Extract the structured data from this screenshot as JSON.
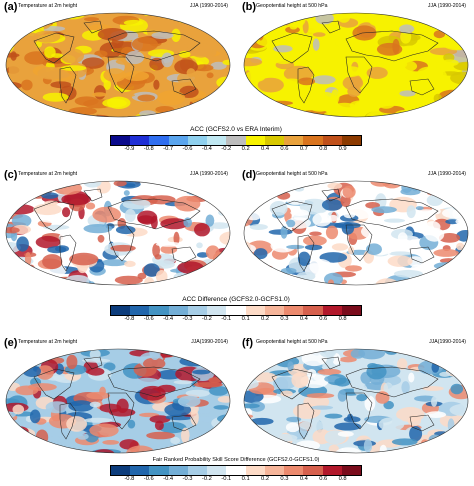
{
  "panels": [
    {
      "id": "a",
      "label": "(a)",
      "title_left": "Temperature at 2m height",
      "title_right": "JJA (1990-2014)",
      "style": "accT"
    },
    {
      "id": "b",
      "label": "(b)",
      "title_left": "Geopotential height at 500 hPa",
      "title_right": "JJA (1990-2014)",
      "style": "accZ"
    },
    {
      "id": "c",
      "label": "(c)",
      "title_left": "Temperature at 2m height",
      "title_right": "JJA (1990-2014)",
      "style": "diffT"
    },
    {
      "id": "d",
      "label": "(d)",
      "title_left": "Geopotential height at 500 hPa",
      "title_right": "JJA (1990-2014)",
      "style": "diffZ"
    },
    {
      "id": "e",
      "label": "(e)",
      "title_left": "Temperature at 2m height",
      "title_right": "JJA(1990-2014)",
      "style": "crpsT"
    },
    {
      "id": "f",
      "label": "(f)",
      "title_left": "Geopotential height at 500 hPa",
      "title_right": "JJA(1990-2014)",
      "style": "crpsZ"
    }
  ],
  "colorbars": [
    {
      "title": "ACC (GCFS2.0 vs ERA Interim)",
      "ticks": [
        "-0.9",
        "-0.8",
        "-0.7",
        "-0.6",
        "-0.4",
        "-0.2",
        "0.2",
        "0.4",
        "0.6",
        "0.7",
        "0.8",
        "0.9"
      ],
      "colors": [
        "#0a0a8c",
        "#1f2fd6",
        "#2f6ef0",
        "#5aa5ee",
        "#8fd0ee",
        "#c0e8f2",
        "#bdbdbd",
        "#f7f200",
        "#d8c800",
        "#e9a23c",
        "#d9741e",
        "#c0501a",
        "#8c3a00"
      ]
    },
    {
      "title": "ACC Difference (GCFS2.0-GCFS1.0)",
      "ticks": [
        "-0.8",
        "-0.6",
        "-0.4",
        "-0.3",
        "-0.2",
        "-0.1",
        "0.1",
        "0.2",
        "0.3",
        "0.4",
        "0.6",
        "0.8"
      ],
      "colors": [
        "#0c3c7c",
        "#2166ac",
        "#4393c3",
        "#73aed6",
        "#a6cde6",
        "#d1e5f0",
        "#ffffff",
        "#fddbc7",
        "#f6b59a",
        "#ec8a6e",
        "#d6604d",
        "#b2182b",
        "#7a0c1c"
      ]
    },
    {
      "title": "Fair Ranked Probability Skill Score Difference (GCFS2.0-GCFS1.0)",
      "ticks": [
        "-0.8",
        "-0.6",
        "-0.4",
        "-0.3",
        "-0.2",
        "-0.1",
        "0.1",
        "0.2",
        "0.3",
        "0.4",
        "0.6",
        "0.8"
      ],
      "colors": [
        "#0c3c7c",
        "#2166ac",
        "#4393c3",
        "#73aed6",
        "#a6cde6",
        "#d1e5f0",
        "#ffffff",
        "#fddbc7",
        "#f6b59a",
        "#ec8a6e",
        "#d6604d",
        "#b2182b",
        "#7a0c1c"
      ]
    }
  ]
}
